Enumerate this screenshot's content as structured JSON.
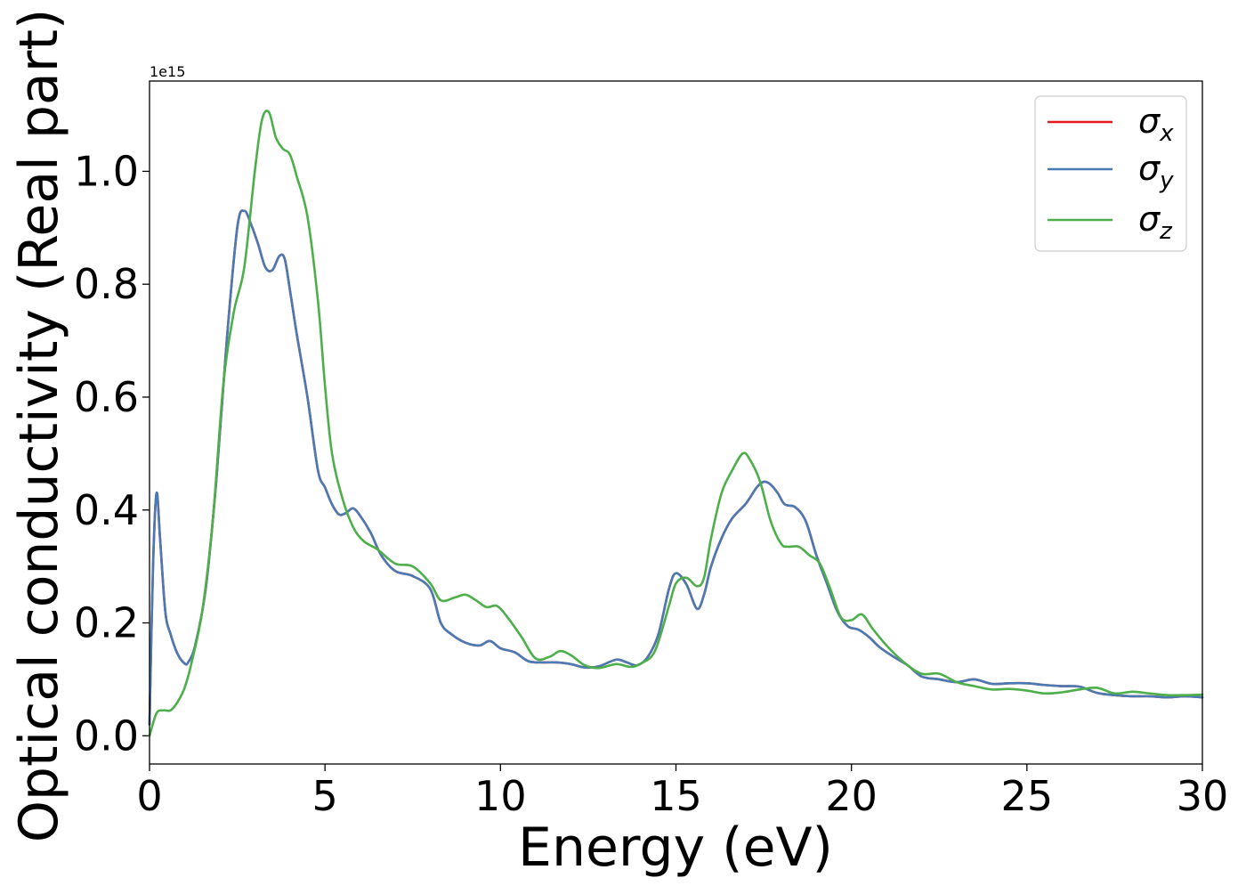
{
  "chart_data": {
    "type": "line",
    "xlabel": "Energy (eV)",
    "ylabel": "Optical conductivity (Real part)",
    "y_offset_text": "1e15",
    "xlim": [
      0,
      30
    ],
    "ylim": [
      -0.05,
      1.16
    ],
    "x_ticks": [
      0,
      5,
      10,
      15,
      20,
      25,
      30
    ],
    "x_tick_labels": [
      "0",
      "5",
      "10",
      "15",
      "20",
      "25",
      "30"
    ],
    "y_ticks": [
      0.0,
      0.2,
      0.4,
      0.6,
      0.8,
      1.0
    ],
    "y_tick_labels": [
      "0.0",
      "0.2",
      "0.4",
      "0.6",
      "0.8",
      "1.0"
    ],
    "grid": false,
    "legend_position": "top-right",
    "series": [
      {
        "name": "σx",
        "legend_base": "σ",
        "legend_sub": "x",
        "color": "#e41a1c",
        "x": [
          0,
          0.1,
          0.2,
          0.3,
          0.45,
          0.6,
          0.8,
          1.0,
          1.1,
          1.3,
          1.6,
          1.9,
          2.2,
          2.5,
          2.7,
          2.9,
          3.1,
          3.3,
          3.5,
          3.7,
          3.85,
          4.0,
          4.2,
          4.5,
          4.8,
          5.0,
          5.2,
          5.4,
          5.6,
          5.8,
          6.0,
          6.3,
          6.6,
          7.0,
          7.5,
          8.0,
          8.3,
          8.6,
          9.0,
          9.4,
          9.7,
          10.0,
          10.4,
          10.8,
          11.2,
          11.6,
          12.0,
          12.4,
          12.8,
          13.3,
          13.6,
          13.9,
          14.2,
          14.5,
          14.8,
          15.0,
          15.3,
          15.6,
          15.8,
          16.0,
          16.3,
          16.6,
          17.0,
          17.3,
          17.5,
          17.7,
          17.9,
          18.1,
          18.4,
          18.7,
          19.0,
          19.3,
          19.6,
          19.9,
          20.2,
          20.5,
          20.8,
          21.2,
          21.6,
          22.0,
          22.5,
          23.0,
          23.5,
          24.0,
          24.5,
          25.0,
          25.5,
          26.0,
          26.5,
          27.0,
          27.5,
          28.0,
          28.5,
          29.0,
          29.5,
          30.0
        ],
        "y": [
          0.02,
          0.3,
          0.43,
          0.35,
          0.22,
          0.18,
          0.145,
          0.128,
          0.13,
          0.16,
          0.26,
          0.45,
          0.7,
          0.9,
          0.93,
          0.905,
          0.87,
          0.83,
          0.825,
          0.85,
          0.845,
          0.79,
          0.71,
          0.6,
          0.47,
          0.44,
          0.41,
          0.392,
          0.395,
          0.403,
          0.39,
          0.36,
          0.32,
          0.292,
          0.283,
          0.26,
          0.2,
          0.18,
          0.165,
          0.16,
          0.168,
          0.155,
          0.148,
          0.132,
          0.13,
          0.13,
          0.127,
          0.121,
          0.123,
          0.135,
          0.13,
          0.125,
          0.14,
          0.18,
          0.26,
          0.288,
          0.268,
          0.225,
          0.25,
          0.3,
          0.35,
          0.385,
          0.412,
          0.44,
          0.45,
          0.445,
          0.43,
          0.41,
          0.405,
          0.38,
          0.32,
          0.27,
          0.22,
          0.194,
          0.188,
          0.175,
          0.157,
          0.14,
          0.125,
          0.105,
          0.1,
          0.095,
          0.1,
          0.092,
          0.093,
          0.093,
          0.09,
          0.088,
          0.087,
          0.076,
          0.072,
          0.07,
          0.07,
          0.068,
          0.07,
          0.068
        ]
      },
      {
        "name": "σy",
        "legend_base": "σ",
        "legend_sub": "y",
        "color": "#4a7ab3",
        "x": [
          0,
          0.1,
          0.2,
          0.3,
          0.45,
          0.6,
          0.8,
          1.0,
          1.1,
          1.3,
          1.6,
          1.9,
          2.2,
          2.5,
          2.7,
          2.9,
          3.1,
          3.3,
          3.5,
          3.7,
          3.85,
          4.0,
          4.2,
          4.5,
          4.8,
          5.0,
          5.2,
          5.4,
          5.6,
          5.8,
          6.0,
          6.3,
          6.6,
          7.0,
          7.5,
          8.0,
          8.3,
          8.6,
          9.0,
          9.4,
          9.7,
          10.0,
          10.4,
          10.8,
          11.2,
          11.6,
          12.0,
          12.4,
          12.8,
          13.3,
          13.6,
          13.9,
          14.2,
          14.5,
          14.8,
          15.0,
          15.3,
          15.6,
          15.8,
          16.0,
          16.3,
          16.6,
          17.0,
          17.3,
          17.5,
          17.7,
          17.9,
          18.1,
          18.4,
          18.7,
          19.0,
          19.3,
          19.6,
          19.9,
          20.2,
          20.5,
          20.8,
          21.2,
          21.6,
          22.0,
          22.5,
          23.0,
          23.5,
          24.0,
          24.5,
          25.0,
          25.5,
          26.0,
          26.5,
          27.0,
          27.5,
          28.0,
          28.5,
          29.0,
          29.5,
          30.0
        ],
        "y": [
          0.02,
          0.3,
          0.43,
          0.35,
          0.22,
          0.18,
          0.145,
          0.128,
          0.13,
          0.16,
          0.26,
          0.45,
          0.7,
          0.9,
          0.93,
          0.905,
          0.87,
          0.83,
          0.825,
          0.85,
          0.845,
          0.79,
          0.71,
          0.6,
          0.47,
          0.44,
          0.41,
          0.392,
          0.395,
          0.403,
          0.39,
          0.36,
          0.32,
          0.292,
          0.283,
          0.26,
          0.2,
          0.18,
          0.165,
          0.16,
          0.168,
          0.155,
          0.148,
          0.132,
          0.13,
          0.13,
          0.127,
          0.121,
          0.123,
          0.135,
          0.13,
          0.125,
          0.14,
          0.18,
          0.26,
          0.288,
          0.268,
          0.225,
          0.25,
          0.3,
          0.35,
          0.385,
          0.412,
          0.44,
          0.45,
          0.445,
          0.43,
          0.41,
          0.405,
          0.38,
          0.32,
          0.27,
          0.22,
          0.194,
          0.188,
          0.175,
          0.157,
          0.14,
          0.125,
          0.105,
          0.1,
          0.095,
          0.1,
          0.092,
          0.093,
          0.093,
          0.09,
          0.088,
          0.087,
          0.076,
          0.072,
          0.07,
          0.07,
          0.068,
          0.07,
          0.068
        ]
      },
      {
        "name": "σz",
        "legend_base": "σ",
        "legend_sub": "z",
        "color": "#4daf4a",
        "x": [
          0,
          0.2,
          0.4,
          0.6,
          0.8,
          1.0,
          1.2,
          1.5,
          1.8,
          2.1,
          2.4,
          2.7,
          3.0,
          3.2,
          3.4,
          3.6,
          3.8,
          4.0,
          4.2,
          4.5,
          4.8,
          5.0,
          5.2,
          5.5,
          5.8,
          6.1,
          6.5,
          7.0,
          7.5,
          8.0,
          8.3,
          8.7,
          9.0,
          9.3,
          9.6,
          9.9,
          10.2,
          10.6,
          11.0,
          11.4,
          11.7,
          12.0,
          12.4,
          12.8,
          13.3,
          13.7,
          14.0,
          14.4,
          14.8,
          15.0,
          15.3,
          15.6,
          15.8,
          16.0,
          16.3,
          16.6,
          16.9,
          17.1,
          17.4,
          17.7,
          18.0,
          18.2,
          18.5,
          18.8,
          19.1,
          19.4,
          19.7,
          20.0,
          20.3,
          20.6,
          21.0,
          21.5,
          22.0,
          22.5,
          23.0,
          23.5,
          24.0,
          24.5,
          25.0,
          25.5,
          26.0,
          26.5,
          27.0,
          27.5,
          28.0,
          28.5,
          29.0,
          29.5,
          30.0
        ],
        "y": [
          0.0,
          0.04,
          0.045,
          0.045,
          0.06,
          0.085,
          0.13,
          0.22,
          0.38,
          0.62,
          0.75,
          0.83,
          1.0,
          1.09,
          1.105,
          1.06,
          1.04,
          1.03,
          0.99,
          0.92,
          0.77,
          0.62,
          0.5,
          0.42,
          0.37,
          0.345,
          0.33,
          0.305,
          0.3,
          0.27,
          0.24,
          0.245,
          0.25,
          0.24,
          0.228,
          0.23,
          0.21,
          0.175,
          0.137,
          0.14,
          0.15,
          0.143,
          0.125,
          0.12,
          0.127,
          0.122,
          0.128,
          0.15,
          0.23,
          0.27,
          0.28,
          0.265,
          0.28,
          0.35,
          0.43,
          0.47,
          0.5,
          0.49,
          0.45,
          0.38,
          0.34,
          0.335,
          0.335,
          0.32,
          0.305,
          0.26,
          0.21,
          0.205,
          0.215,
          0.19,
          0.16,
          0.13,
          0.11,
          0.11,
          0.095,
          0.088,
          0.082,
          0.083,
          0.08,
          0.075,
          0.077,
          0.082,
          0.085,
          0.075,
          0.078,
          0.075,
          0.072,
          0.072,
          0.073
        ]
      }
    ]
  }
}
